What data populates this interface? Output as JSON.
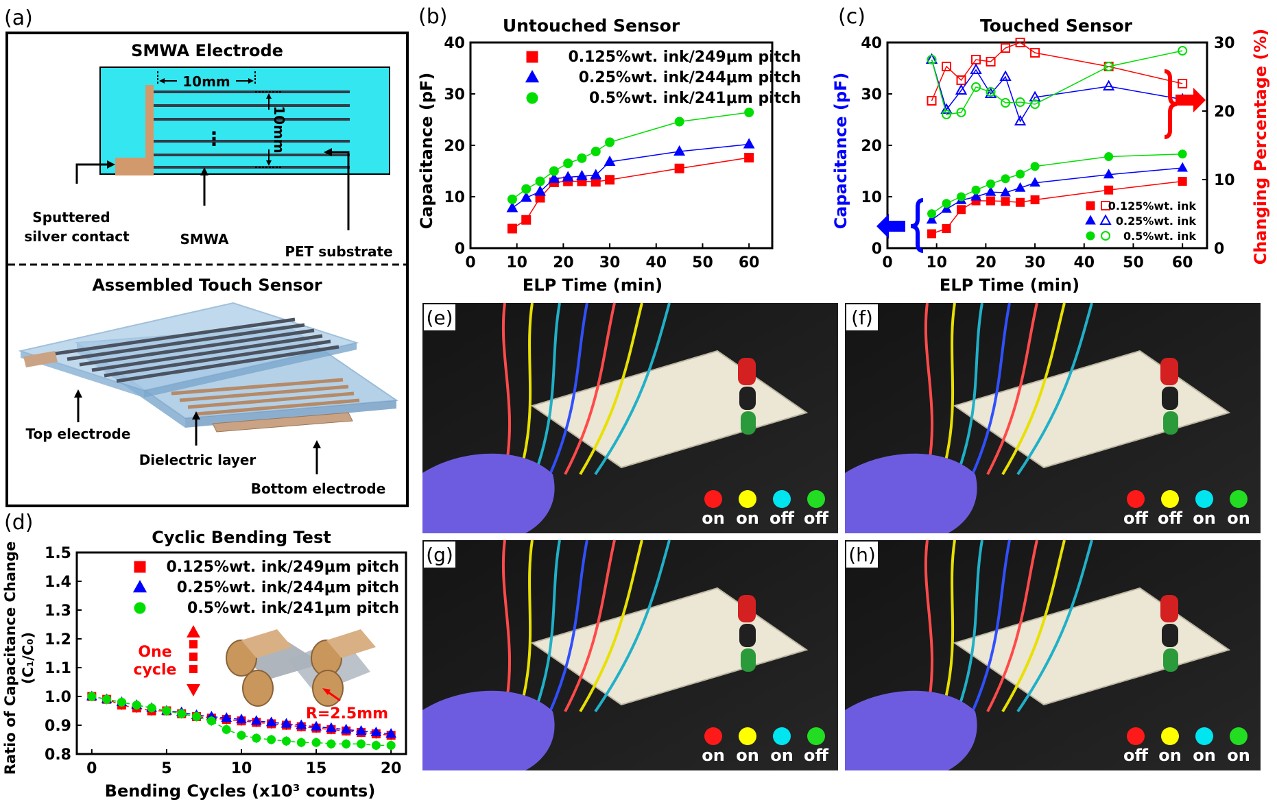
{
  "panel_labels": [
    "(a)",
    "(b)",
    "(c)",
    "(d)",
    "(e)",
    "(f)",
    "(g)",
    "(h)"
  ],
  "panel_a": {
    "title": "SMWA Electrode",
    "dim_horizontal": "10mm",
    "dim_vertical": "10mm",
    "ellipsis": "⋮",
    "label_contact_line1": "Sputtered",
    "label_contact_line2": "silver contact",
    "label_smwa": "SMWA",
    "label_pet": "PET substrate",
    "assembled_title": "Assembled Touch Sensor",
    "label_top": "Top electrode",
    "label_dielectric": "Dielectric layer",
    "label_bottom": "Bottom electrode",
    "colors": {
      "substrate": "#33e6f0",
      "contact": "#d29a6c",
      "electrode": "#3a4150",
      "sheet": "#8fb6d9"
    }
  },
  "chart_data": [
    {
      "id": "b",
      "type": "line",
      "title": "Untouched Sensor",
      "xlabel": "ELP Time (min)",
      "ylabel": "Capacitance (pF)",
      "xlim": [
        0,
        65
      ],
      "ylim": [
        0,
        40
      ],
      "xticks": [
        0,
        10,
        20,
        30,
        40,
        50,
        60
      ],
      "yticks": [
        0,
        10,
        20,
        30,
        40
      ],
      "legend": "top-right",
      "x": [
        9,
        12,
        15,
        18,
        21,
        24,
        27,
        30,
        45,
        60
      ],
      "series": [
        {
          "name": "0.125%wt. ink/249μm pitch",
          "color": "#ff0000",
          "marker": "square",
          "values": [
            3.8,
            5.5,
            9.8,
            12.8,
            13.0,
            13.0,
            12.9,
            13.3,
            15.5,
            17.6
          ]
        },
        {
          "name": "0.25%wt. ink/244μm pitch",
          "color": "#0000ff",
          "marker": "triangle",
          "values": [
            7.8,
            9.8,
            11.0,
            13.5,
            13.8,
            14.0,
            14.2,
            16.8,
            18.8,
            20.2
          ]
        },
        {
          "name": "0.5%wt. ink/241μm pitch",
          "color": "#00dd00",
          "marker": "circle",
          "values": [
            9.5,
            11.5,
            13.0,
            15.0,
            16.5,
            17.5,
            18.8,
            20.6,
            24.6,
            26.4
          ]
        }
      ]
    },
    {
      "id": "c",
      "type": "line",
      "title": "Touched Sensor",
      "xlabel": "ELP Time (min)",
      "ylabel": "Capacitance (pF)",
      "y2label": "Changing Percentage (%)",
      "xlim": [
        0,
        65
      ],
      "ylim": [
        0,
        40
      ],
      "y2lim": [
        0,
        30
      ],
      "xticks": [
        0,
        10,
        20,
        30,
        40,
        50,
        60
      ],
      "yticks": [
        0,
        10,
        20,
        30,
        40
      ],
      "y2ticks": [
        0,
        10,
        20,
        30
      ],
      "legend": "bottom-right",
      "x": [
        9,
        12,
        15,
        18,
        21,
        24,
        27,
        30,
        45,
        60
      ],
      "legend_entries": [
        "0.125%wt. ink",
        "0.25%wt. ink",
        "0.5%wt. ink"
      ],
      "capacitance": [
        {
          "color": "#ff0000",
          "marker": "square",
          "values": [
            2.8,
            3.8,
            7.5,
            9.2,
            9.2,
            9.1,
            8.9,
            9.4,
            11.3,
            13.0
          ]
        },
        {
          "color": "#0000ff",
          "marker": "triangle",
          "values": [
            5.5,
            7.6,
            9.3,
            10.0,
            10.9,
            10.8,
            11.7,
            12.7,
            14.3,
            15.6
          ]
        },
        {
          "color": "#00dd00",
          "marker": "circle",
          "values": [
            6.7,
            8.7,
            10.0,
            11.3,
            12.5,
            13.5,
            14.4,
            15.9,
            17.8,
            18.3
          ]
        }
      ],
      "percentage": [
        {
          "color": "#ff0000",
          "marker": "square",
          "values": [
            21.5,
            26.5,
            24.5,
            27.5,
            27.2,
            29.2,
            30.0,
            28.5,
            26.5,
            24.0
          ]
        },
        {
          "color": "#0000ff",
          "marker": "triangle",
          "values": [
            27.5,
            20.2,
            23.0,
            26.0,
            22.5,
            25.0,
            18.5,
            22.0,
            23.6,
            21.7
          ]
        },
        {
          "color": "#00dd00",
          "marker": "circle",
          "values": [
            27.5,
            19.5,
            19.8,
            23.5,
            22.8,
            21.2,
            21.3,
            21.0,
            26.5,
            28.8
          ]
        }
      ]
    },
    {
      "id": "d",
      "type": "scatter",
      "title": "Cyclic Bending Test",
      "xlabel": "Bending Cycles (x10³ counts)",
      "ylabel_line1": "Ratio of Capacitance Change",
      "ylabel_line2": "(C₁/C₀)",
      "xlim": [
        -1,
        21
      ],
      "ylim": [
        0.8,
        1.5
      ],
      "xticks": [
        0,
        5,
        10,
        15,
        20
      ],
      "yticks": [
        0.8,
        0.9,
        1.0,
        1.1,
        1.2,
        1.3,
        1.4,
        1.5
      ],
      "legend": "top-right",
      "x": [
        0,
        1,
        2,
        3,
        4,
        5,
        6,
        7,
        8,
        9,
        10,
        11,
        12,
        13,
        14,
        15,
        16,
        17,
        18,
        19,
        20
      ],
      "series": [
        {
          "name": "0.125%wt. ink/249μm pitch",
          "color": "#ff0000",
          "marker": "square",
          "values": [
            1.0,
            0.99,
            0.97,
            0.96,
            0.95,
            0.95,
            0.94,
            0.93,
            0.925,
            0.92,
            0.915,
            0.91,
            0.905,
            0.9,
            0.895,
            0.89,
            0.885,
            0.88,
            0.875,
            0.87,
            0.865
          ]
        },
        {
          "name": "0.25%wt. ink/244μm pitch",
          "color": "#0000ff",
          "marker": "triangle",
          "values": [
            1.0,
            0.99,
            0.98,
            0.97,
            0.96,
            0.95,
            0.945,
            0.935,
            0.93,
            0.925,
            0.92,
            0.915,
            0.91,
            0.905,
            0.9,
            0.895,
            0.89,
            0.885,
            0.88,
            0.875,
            0.87
          ]
        },
        {
          "name": "0.5%wt. ink/241μm pitch",
          "color": "#00dd00",
          "marker": "circle",
          "values": [
            1.0,
            0.99,
            0.98,
            0.97,
            0.96,
            0.95,
            0.94,
            0.93,
            0.915,
            0.885,
            0.865,
            0.855,
            0.85,
            0.845,
            0.84,
            0.84,
            0.835,
            0.835,
            0.835,
            0.83,
            0.83
          ]
        }
      ],
      "annotations": {
        "one_cycle_line1": "One",
        "one_cycle_line2": "cycle",
        "radius": "R=2.5mm"
      }
    }
  ],
  "photos": [
    {
      "id": "e",
      "states": [
        "on",
        "on",
        "off",
        "off"
      ]
    },
    {
      "id": "f",
      "states": [
        "off",
        "off",
        "on",
        "on"
      ]
    },
    {
      "id": "g",
      "states": [
        "on",
        "on",
        "on",
        "off"
      ]
    },
    {
      "id": "h",
      "states": [
        "off",
        "on",
        "on",
        "on"
      ]
    }
  ],
  "led_colors": [
    "#ff1a1a",
    "#ffff00",
    "#00e5f0",
    "#22dd22"
  ]
}
